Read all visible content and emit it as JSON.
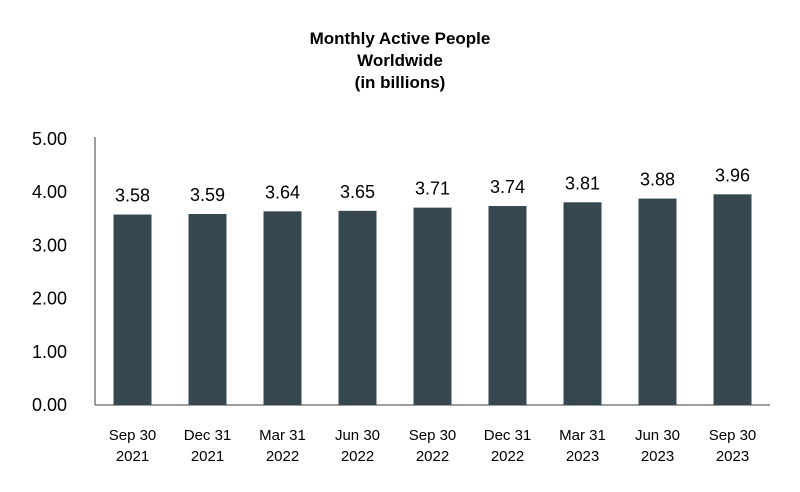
{
  "chart_data": {
    "type": "bar",
    "title_lines": [
      "Monthly Active People",
      "Worldwide",
      "(in billions)"
    ],
    "categories": [
      [
        "Sep 30",
        "2021"
      ],
      [
        "Dec 31",
        "2021"
      ],
      [
        "Mar 31",
        "2022"
      ],
      [
        "Jun 30",
        "2022"
      ],
      [
        "Sep 30",
        "2022"
      ],
      [
        "Dec 31",
        "2022"
      ],
      [
        "Mar 31",
        "2023"
      ],
      [
        "Jun 30",
        "2023"
      ],
      [
        "Sep 30",
        "2023"
      ]
    ],
    "values": [
      3.58,
      3.59,
      3.64,
      3.65,
      3.71,
      3.74,
      3.81,
      3.88,
      3.96
    ],
    "value_labels": [
      "3.58",
      "3.59",
      "3.64",
      "3.65",
      "3.71",
      "3.74",
      "3.81",
      "3.88",
      "3.96"
    ],
    "ylim": [
      0,
      5
    ],
    "yticks": [
      0,
      1,
      2,
      3,
      4,
      5
    ],
    "ytick_labels": [
      "0.00",
      "1.00",
      "2.00",
      "3.00",
      "4.00",
      "5.00"
    ],
    "grid": false,
    "legend": "none",
    "colors": {
      "bar": "#36474f",
      "axis": "#7f7f7f"
    }
  }
}
